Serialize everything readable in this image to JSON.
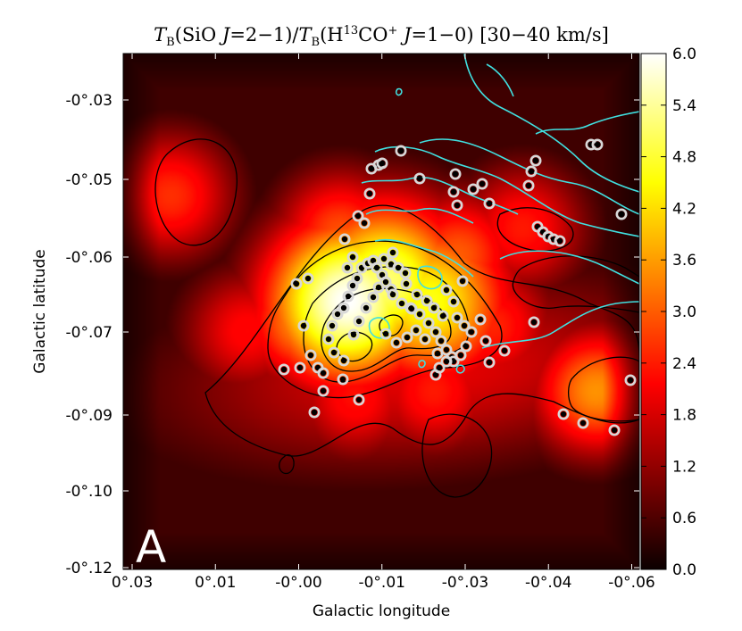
{
  "chart_data": {
    "type": "heatmap",
    "title": "T_B(SiO J=2−1)/T_B(H¹³CO⁺ J=1−0) [30−40 km/s]",
    "title_parts": {
      "t1": "T",
      "s1": "B",
      "m1": "(SiO ",
      "j1": "J",
      "e1": "=2−1)/",
      "t2": "T",
      "s2": "B",
      "m2": "(H",
      "sup1": "13",
      "m3": "CO",
      "sup2": "+",
      "j2": "J",
      "e2": "=1−0) [30−40 km/s]"
    },
    "panel_label": "A",
    "xlabel": "Galactic longitude",
    "ylabel": "Galactic latitude",
    "x_ticks": [
      "0°.03",
      "0°.01",
      "-0°.00",
      "-0°.01",
      "-0°.03",
      "-0°.04",
      "-0°.06"
    ],
    "y_ticks": [
      "-0°.03",
      "-0°.05",
      "-0°.06",
      "-0°.07",
      "-0°.09",
      "-0°.10",
      "-0°.12"
    ],
    "x_range_deg": [
      0.035,
      -0.07
    ],
    "y_range_deg": [
      -0.025,
      -0.12
    ],
    "colorbar": {
      "colormap": "hot",
      "min": 0.0,
      "max": 6.0,
      "ticks": [
        "6.0",
        "5.4",
        "4.8",
        "4.2",
        "3.6",
        "3.0",
        "2.4",
        "1.8",
        "1.2",
        "0.6",
        "0.0"
      ]
    },
    "hotspots": [
      {
        "l": -0.0105,
        "b": -0.0705,
        "peak": 6.0
      },
      {
        "l": -0.018,
        "b": -0.067,
        "peak": 5.2
      },
      {
        "l": -0.027,
        "b": -0.0705,
        "peak": 4.6
      },
      {
        "l": -0.002,
        "b": -0.074,
        "peak": 3.6
      },
      {
        "l": -0.061,
        "b": -0.087,
        "peak": 3.5
      },
      {
        "l": 0.0255,
        "b": -0.051,
        "peak": 2.6
      },
      {
        "l": -0.009,
        "b": -0.058,
        "peak": 2.9
      },
      {
        "l": -0.033,
        "b": -0.062,
        "peak": 3.0
      },
      {
        "l": -0.046,
        "b": -0.057,
        "peak": 2.4
      },
      {
        "l": -0.028,
        "b": -0.087,
        "peak": 2.4
      },
      {
        "l": -0.012,
        "b": -0.088,
        "peak": 2.3
      },
      {
        "l": -0.04,
        "b": -0.075,
        "peak": 2.5
      },
      {
        "l": 0.01,
        "b": -0.076,
        "peak": 2.2
      }
    ],
    "overlay_contour_color": "#40e0e0",
    "marker_colors": {
      "ring": "#d8d8d8",
      "core": "#000000"
    }
  }
}
